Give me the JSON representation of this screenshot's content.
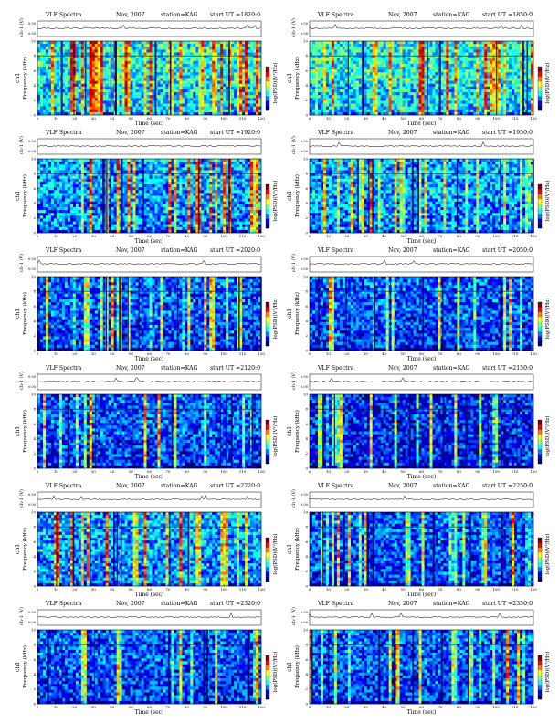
{
  "page": {
    "background": "#ffffff"
  },
  "common": {
    "title": "VLF Spectra",
    "date": "Nov, 2007",
    "station": "station=KAG",
    "start_prefix": "start UT =",
    "ch_label": "ch-1 (V)",
    "ch_ticks": [
      "0.00",
      "0.50"
    ],
    "ylabel_prefix": "ch1",
    "ylabel": "Frequency (kHz)",
    "y_ticks": [
      "0",
      "2",
      "4",
      "6",
      "8",
      "10"
    ],
    "xlabel": "Time (sec)",
    "x_ticks": [
      "0",
      "10",
      "20",
      "30",
      "40",
      "50",
      "60",
      "70",
      "80",
      "90",
      "100",
      "110",
      "120"
    ],
    "colorbar_label": "log(PSD)(V²/Hz)",
    "colorbar_colors": [
      "#00007f",
      "#0000ff",
      "#007fff",
      "#00ffff",
      "#7fff7f",
      "#ffff00",
      "#ff7f00",
      "#ff0000",
      "#7f0000"
    ]
  },
  "chart_data": [
    {
      "type": "heatmap",
      "start": "1820:0",
      "xlim": [
        0,
        120
      ],
      "ylim": [
        0,
        10
      ],
      "xlabel": "Time (sec)",
      "ylabel": "Frequency (kHz)",
      "intensity": "high"
    },
    {
      "type": "heatmap",
      "start": "1850:0",
      "xlim": [
        0,
        120
      ],
      "ylim": [
        0,
        10
      ],
      "xlabel": "Time (sec)",
      "ylabel": "Frequency (kHz)",
      "intensity": "high"
    },
    {
      "type": "heatmap",
      "start": "1920:0",
      "xlim": [
        0,
        120
      ],
      "ylim": [
        0,
        10
      ],
      "xlabel": "Time (sec)",
      "ylabel": "Frequency (kHz)",
      "intensity": "medium"
    },
    {
      "type": "heatmap",
      "start": "1950:0",
      "xlim": [
        0,
        120
      ],
      "ylim": [
        0,
        10
      ],
      "xlabel": "Time (sec)",
      "ylabel": "Frequency (kHz)",
      "intensity": "medium"
    },
    {
      "type": "heatmap",
      "start": "2020:0",
      "xlim": [
        0,
        120
      ],
      "ylim": [
        0,
        10
      ],
      "xlabel": "Time (sec)",
      "ylabel": "Frequency (kHz)",
      "intensity": "low"
    },
    {
      "type": "heatmap",
      "start": "2050:0",
      "xlim": [
        0,
        120
      ],
      "ylim": [
        0,
        10
      ],
      "xlabel": "Time (sec)",
      "ylabel": "Frequency (kHz)",
      "intensity": "low"
    },
    {
      "type": "heatmap",
      "start": "2120:0",
      "xlim": [
        0,
        120
      ],
      "ylim": [
        0,
        10
      ],
      "xlabel": "Time (sec)",
      "ylabel": "Frequency (kHz)",
      "intensity": "low"
    },
    {
      "type": "heatmap",
      "start": "2150:0",
      "xlim": [
        0,
        120
      ],
      "ylim": [
        0,
        10
      ],
      "xlabel": "Time (sec)",
      "ylabel": "Frequency (kHz)",
      "intensity": "very-low"
    },
    {
      "type": "heatmap",
      "start": "2220:0",
      "xlim": [
        0,
        120
      ],
      "ylim": [
        0,
        10
      ],
      "xlabel": "Time (sec)",
      "ylabel": "Frequency (kHz)",
      "intensity": "medium"
    },
    {
      "type": "heatmap",
      "start": "2250:0",
      "xlim": [
        0,
        120
      ],
      "ylim": [
        0,
        10
      ],
      "xlabel": "Time (sec)",
      "ylabel": "Frequency (kHz)",
      "intensity": "low"
    },
    {
      "type": "heatmap",
      "start": "2320:0",
      "xlim": [
        0,
        120
      ],
      "ylim": [
        0,
        10
      ],
      "xlabel": "Time (sec)",
      "ylabel": "Frequency (kHz)",
      "intensity": "low"
    },
    {
      "type": "heatmap",
      "start": "2350:0",
      "xlim": [
        0,
        120
      ],
      "ylim": [
        0,
        10
      ],
      "xlabel": "Time (sec)",
      "ylabel": "Frequency (kHz)",
      "intensity": "low"
    }
  ]
}
